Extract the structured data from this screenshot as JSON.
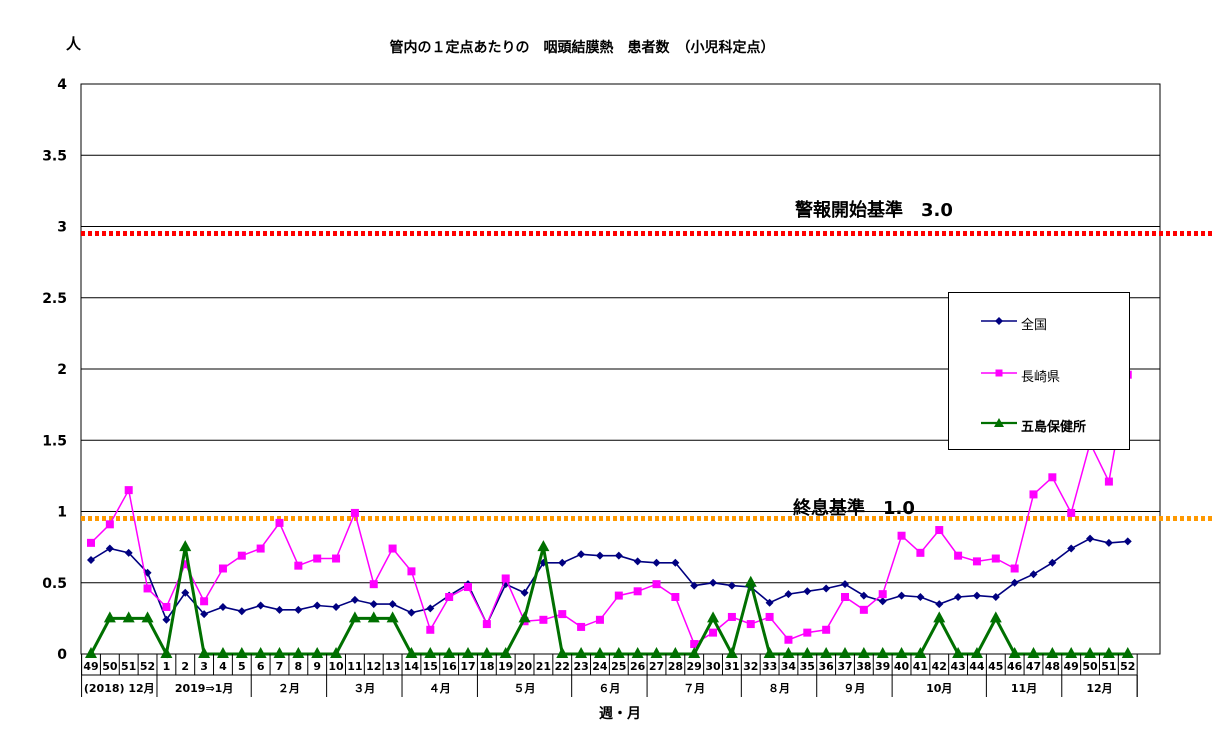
{
  "chart_data": {
    "type": "line",
    "title": "管内の１定点あたりの　咽頭結膜熱　患者数　（小児科定点）",
    "ylabel": "人",
    "xlabel": "週・月",
    "ylim": [
      0,
      4
    ],
    "yticks": [
      "0",
      "0.5",
      "1",
      "1.5",
      "2",
      "2.5",
      "3",
      "3.5",
      "4"
    ],
    "grid": true,
    "legend_position": "right",
    "weeks": [
      "49",
      "50",
      "51",
      "52",
      "1",
      "2",
      "3",
      "4",
      "5",
      "6",
      "7",
      "8",
      "9",
      "10",
      "11",
      "12",
      "13",
      "14",
      "15",
      "16",
      "17",
      "18",
      "19",
      "20",
      "21",
      "22",
      "23",
      "24",
      "25",
      "26",
      "27",
      "28",
      "29",
      "30",
      "31",
      "32",
      "33",
      "34",
      "35",
      "36",
      "37",
      "38",
      "39",
      "40",
      "41",
      "42",
      "43",
      "44",
      "45",
      "46",
      "47",
      "48",
      "49",
      "50",
      "51",
      "52"
    ],
    "month_groups": [
      {
        "label": "(2018) 12月",
        "weeks": 4
      },
      {
        "label": "2019⇒1月",
        "weeks": 5
      },
      {
        "label": "２月",
        "weeks": 4
      },
      {
        "label": "３月",
        "weeks": 4
      },
      {
        "label": "４月",
        "weeks": 4
      },
      {
        "label": "５月",
        "weeks": 5
      },
      {
        "label": "６月",
        "weeks": 4
      },
      {
        "label": "７月",
        "weeks": 5
      },
      {
        "label": "８月",
        "weeks": 4
      },
      {
        "label": "９月",
        "weeks": 4
      },
      {
        "label": "10月",
        "weeks": 5
      },
      {
        "label": "11月",
        "weeks": 4
      },
      {
        "label": "12月",
        "weeks": 4
      }
    ],
    "series": [
      {
        "name": "全国",
        "color": "#000080",
        "marker": "diamond",
        "values": [
          0.66,
          0.74,
          0.71,
          0.57,
          0.24,
          0.43,
          0.28,
          0.33,
          0.3,
          0.34,
          0.31,
          0.31,
          0.34,
          0.33,
          0.38,
          0.35,
          0.35,
          0.29,
          0.32,
          0.41,
          0.49,
          0.21,
          0.49,
          0.43,
          0.64,
          0.64,
          0.7,
          0.69,
          0.69,
          0.65,
          0.64,
          0.64,
          0.48,
          0.5,
          0.48,
          0.47,
          0.36,
          0.42,
          0.44,
          0.46,
          0.49,
          0.41,
          0.37,
          0.41,
          0.4,
          0.35,
          0.4,
          0.41,
          0.4,
          0.5,
          0.56,
          0.64,
          0.74,
          0.81,
          0.78,
          0.79
        ]
      },
      {
        "name": "長崎県",
        "color": "#ff00ff",
        "marker": "square",
        "values": [
          0.78,
          0.91,
          1.15,
          0.46,
          0.33,
          0.63,
          0.37,
          0.6,
          0.69,
          0.74,
          0.92,
          0.62,
          0.67,
          0.67,
          0.99,
          0.49,
          0.74,
          0.58,
          0.17,
          0.4,
          0.47,
          0.21,
          0.53,
          0.23,
          0.24,
          0.28,
          0.19,
          0.24,
          0.41,
          0.44,
          0.49,
          0.4,
          0.07,
          0.15,
          0.26,
          0.21,
          0.26,
          0.1,
          0.15,
          0.17,
          0.4,
          0.31,
          0.42,
          0.83,
          0.71,
          0.87,
          0.69,
          0.65,
          0.67,
          0.6,
          1.12,
          1.24,
          0.99,
          1.48,
          1.21,
          1.96
        ]
      },
      {
        "name": "五島保健所",
        "color": "#007000",
        "marker": "triangle",
        "values": [
          0,
          0.25,
          0.25,
          0.25,
          0,
          0.75,
          0,
          0,
          0,
          0,
          0,
          0,
          0,
          0,
          0.25,
          0.25,
          0.25,
          0,
          0,
          0,
          0,
          0,
          0,
          0.25,
          0.75,
          0,
          0,
          0,
          0,
          0,
          0,
          0,
          0,
          0.25,
          0,
          0.5,
          0,
          0,
          0,
          0,
          0,
          0,
          0,
          0,
          0,
          0.25,
          0,
          0,
          0.25,
          0,
          0,
          0,
          0,
          0,
          0,
          0
        ]
      }
    ],
    "reference_lines": [
      {
        "label": "警報開始基準　3.0",
        "value": 3.0,
        "color": "#ff0000"
      },
      {
        "label": "終息基準　1.0",
        "value": 1.0,
        "color": "#ff9900"
      }
    ]
  }
}
